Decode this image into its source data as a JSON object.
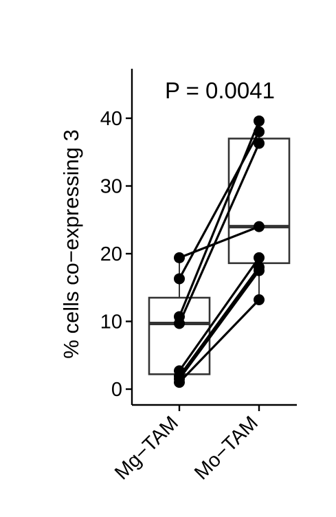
{
  "chart_data": {
    "type": "boxplot-paired",
    "title": "",
    "annotation": "P = 0.0041",
    "ylabel": "% cells co−expressing 3",
    "xlabel": "",
    "categories": [
      "Mg−TAM",
      "Mo−TAM"
    ],
    "ylim": [
      -2,
      47
    ],
    "yticks": [
      0,
      10,
      20,
      30,
      40
    ],
    "ytick_labels": [
      "0",
      "10",
      "20",
      "30",
      "40"
    ],
    "grid": false,
    "legend": "none",
    "boxes": [
      {
        "category": "Mg−TAM",
        "q1": 2.2,
        "median": 9.7,
        "q3": 13.5,
        "whisker_low": 1.0,
        "whisker_high": 19.4
      },
      {
        "category": "Mo−TAM",
        "q1": 18.6,
        "median": 24.0,
        "q3": 37.0,
        "whisker_low": 13.2,
        "whisker_high": 39.6
      }
    ],
    "pairs": [
      {
        "values": [
          19.4,
          24.0
        ]
      },
      {
        "values": [
          16.3,
          38.0
        ]
      },
      {
        "values": [
          10.7,
          39.6
        ]
      },
      {
        "values": [
          9.7,
          36.3
        ]
      },
      {
        "values": [
          2.7,
          19.4
        ]
      },
      {
        "values": [
          1.9,
          18.0
        ]
      },
      {
        "values": [
          1.5,
          17.5
        ]
      },
      {
        "values": [
          1.0,
          13.2
        ]
      }
    ],
    "colors": {
      "points": "#000000",
      "lines": "#000000",
      "box": "#333333",
      "median": "#333333",
      "axis": "#000000"
    }
  }
}
